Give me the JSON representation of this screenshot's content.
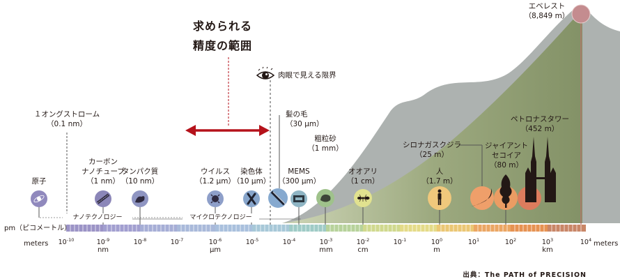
{
  "header": {
    "title_line1": "求められる",
    "title_line2": "精度の範囲"
  },
  "eye_limit": "肉眼で見える限界",
  "axis": {
    "left_label": "pm（ピコメートル）",
    "meters_left": "meters",
    "meters_right": "meters",
    "ticks": [
      {
        "base": "10",
        "exp": "-10"
      },
      {
        "base": "10",
        "exp": "-9"
      },
      {
        "base": "10",
        "exp": "-8"
      },
      {
        "base": "10",
        "exp": "-7"
      },
      {
        "base": "10",
        "exp": "-6"
      },
      {
        "base": "10",
        "exp": "-5"
      },
      {
        "base": "10",
        "exp": "-4"
      },
      {
        "base": "10",
        "exp": "-3"
      },
      {
        "base": "10",
        "exp": "-2"
      },
      {
        "base": "10",
        "exp": "-1"
      },
      {
        "base": "10",
        "exp": "0"
      },
      {
        "base": "10",
        "exp": "1"
      },
      {
        "base": "10",
        "exp": "2"
      },
      {
        "base": "10",
        "exp": "3"
      },
      {
        "base": "10",
        "exp": "4"
      }
    ],
    "units": {
      "nm": "nm",
      "um": "μm",
      "mm": "mm",
      "cm": "cm",
      "m": "m",
      "km": "km"
    }
  },
  "ranges": {
    "nano": "ナノテクノロジー",
    "micro": "マイクロテクノロジー"
  },
  "items": {
    "angstrom": {
      "name": "１オングストローム",
      "size": "（0.1 nm）"
    },
    "atom": {
      "name": "原子"
    },
    "nanotube": {
      "name1": "カーボン",
      "name2": "ナノチューブ",
      "size": "（1 nm）"
    },
    "protein": {
      "name": "タンパク質",
      "size": "（10 nm）"
    },
    "virus": {
      "name": "ウイルス",
      "size": "（1.2 μm）"
    },
    "chromosome": {
      "name": "染色体",
      "size": "（10 μm）"
    },
    "hair": {
      "name": "髪の毛",
      "size": "（30 μm）"
    },
    "mems": {
      "name": "MEMS",
      "size": "（300 μm）"
    },
    "sand": {
      "name": "粗粒砂",
      "size": "（1 mm）"
    },
    "ant": {
      "name": "オオアリ",
      "size": "（1 cm）"
    },
    "human": {
      "name": "人",
      "size": "（1.7 m）"
    },
    "whale": {
      "name": "シロナガスクジラ",
      "size": "（25 m）"
    },
    "sequoia": {
      "name1": "ジャイアント",
      "name2": "セコイア",
      "size": "（80 m）"
    },
    "towers": {
      "name": "ペトロナスタワー",
      "size": "（452 m）"
    },
    "everest": {
      "name": "エベレスト",
      "size": "（8,849 m）"
    }
  },
  "source": "出典：The PATH of PRECISION",
  "colors": {
    "accent_red": "#b5121b",
    "mountain_dark": "#a9aeac",
    "mountain_green": "#8a9a66",
    "bar_violet": "#9b93c6",
    "bar_orange": "#e69252"
  }
}
